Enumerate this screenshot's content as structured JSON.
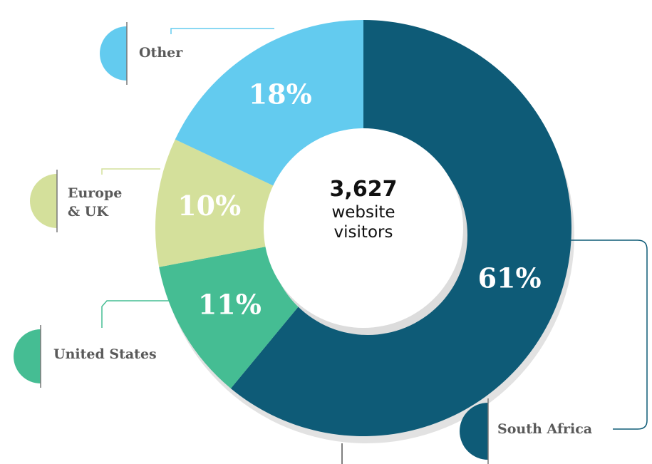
{
  "chart_data": {
    "type": "donut",
    "categories": [
      "South Africa",
      "United States",
      "Europe & UK",
      "Other"
    ],
    "values": [
      61,
      11,
      10,
      18
    ],
    "value_labels": [
      "61%",
      "11%",
      "10%",
      "18%"
    ],
    "colors": [
      "#0e5b77",
      "#45bd93",
      "#d4e09b",
      "#63cbef"
    ],
    "center_title": "3,627",
    "center_text": "website visitors"
  }
}
